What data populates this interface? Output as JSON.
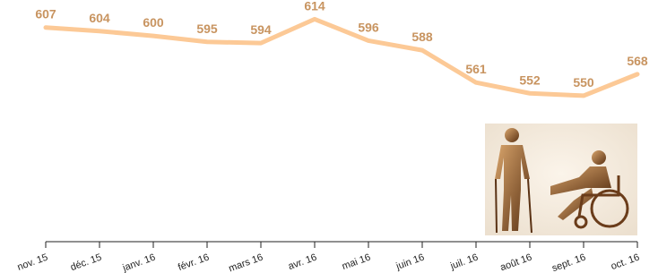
{
  "chart_data": {
    "type": "line",
    "categories": [
      "nov. 15",
      "déc. 15",
      "janv. 16",
      "févr. 16",
      "mars 16",
      "avr. 16",
      "mai 16",
      "juin 16",
      "juil. 16",
      "août 16",
      "sept. 16",
      "oct. 16"
    ],
    "values": [
      607,
      604,
      600,
      595,
      594,
      614,
      596,
      588,
      561,
      552,
      550,
      568
    ],
    "color": "#fcc996",
    "ylim": [
      428,
      630
    ]
  }
}
